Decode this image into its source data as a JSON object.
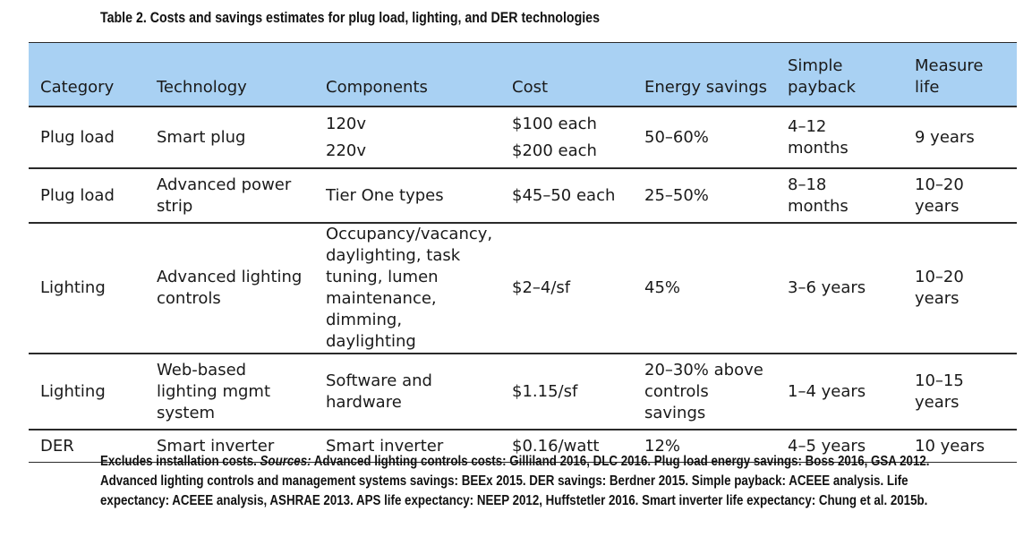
{
  "caption": "Table 2. Costs and savings estimates for plug load, lighting, and DER technologies",
  "columns": {
    "category": "Category",
    "technology": "Technology",
    "components": "Components",
    "cost": "Cost",
    "energy_savings": "Energy savings",
    "payback_line1": "Simple",
    "payback_line2": "payback",
    "life_line1": "Measure",
    "life_line2": "life"
  },
  "rows": [
    {
      "category": "Plug load",
      "technology": "Smart plug",
      "components": [
        "120v",
        "220v"
      ],
      "cost": [
        "$100 each",
        "$200 each"
      ],
      "energy_savings": "50–60%",
      "payback": [
        "4–12",
        "months"
      ],
      "life": "9 years"
    },
    {
      "category": "Plug load",
      "technology": [
        "Advanced power",
        "strip"
      ],
      "components": "Tier One types",
      "cost": "$45–50 each",
      "energy_savings": "25–50%",
      "payback": [
        "8–18",
        "months"
      ],
      "life": [
        "10–20",
        "years"
      ]
    },
    {
      "category": "Lighting",
      "technology": [
        "Advanced lighting",
        "controls"
      ],
      "components": [
        "Occupancy/vacancy,",
        "daylighting, task",
        "tuning, lumen",
        "maintenance,",
        "dimming, daylighting"
      ],
      "cost": "$2–4/sf",
      "energy_savings": "45%",
      "payback": "3–6 years",
      "life": [
        "10–20",
        "years"
      ]
    },
    {
      "category": "Lighting",
      "technology": [
        "Web-based",
        "lighting mgmt",
        "system"
      ],
      "components": [
        "Software and",
        "hardware"
      ],
      "cost": "$1.15/sf",
      "energy_savings": [
        "20–30% above",
        "controls",
        "savings"
      ],
      "payback": "1–4 years",
      "life": [
        "10–15",
        "years"
      ]
    },
    {
      "category": "DER",
      "technology": "Smart inverter",
      "components": "Smart inverter",
      "cost": "$0.16/watt",
      "energy_savings": "12%",
      "payback": "4–5 years",
      "life": "10 years"
    }
  ],
  "footnote": {
    "prefix": "Excludes installation costs. ",
    "sources_label": "Sources:",
    "body": " Advanced lighting controls costs: Gilliland 2016, DLC 2016. Plug load energy savings: Boss 2016, GSA 2012. Advanced lighting controls and management systems savings: BEEx 2015. DER savings: Berdner 2015. Simple payback: ACEEE analysis. Life expectancy: ACEEE analysis, ASHRAE 2013. APS life expectancy: NEEP 2012, Huffstetler 2016. Smart inverter life expectancy: Chung et al. 2015b."
  }
}
